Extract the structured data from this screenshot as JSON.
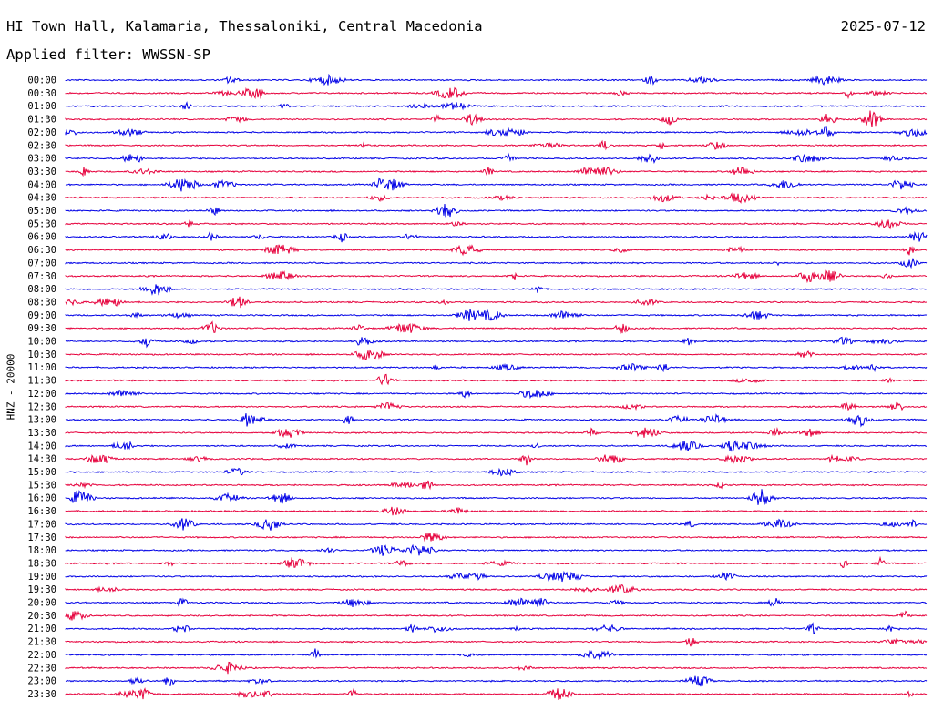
{
  "header": {
    "title": "HI Town Hall, Kalamaria, Thessaloniki, Central Macedonia",
    "date": "2025-07-12",
    "filter": "Applied filter: WWSSN-SP"
  },
  "colors": {
    "blue": "#0000e6",
    "red": "#e6003c"
  },
  "chart_data": {
    "type": "line",
    "title": "HI Town Hall, Kalamaria, Thessaloniki, Central Macedonia",
    "ylabel": "HNZ - 20000",
    "xlabel": "",
    "row_labels": [
      "00:00",
      "00:30",
      "01:00",
      "01:30",
      "02:00",
      "02:30",
      "03:00",
      "03:30",
      "04:00",
      "04:30",
      "05:00",
      "05:30",
      "06:00",
      "06:30",
      "07:00",
      "07:30",
      "08:00",
      "08:30",
      "09:00",
      "09:30",
      "10:00",
      "10:30",
      "11:00",
      "11:30",
      "12:00",
      "12:30",
      "13:00",
      "13:30",
      "14:00",
      "14:30",
      "15:00",
      "15:30",
      "16:00",
      "16:30",
      "17:00",
      "17:30",
      "18:00",
      "18:30",
      "19:00",
      "19:30",
      "20:00",
      "20:30",
      "21:00",
      "21:30",
      "22:00",
      "22:30",
      "23:00",
      "23:30"
    ],
    "series_colors": [
      "blue",
      "red"
    ],
    "grid": false,
    "legend": "none"
  }
}
